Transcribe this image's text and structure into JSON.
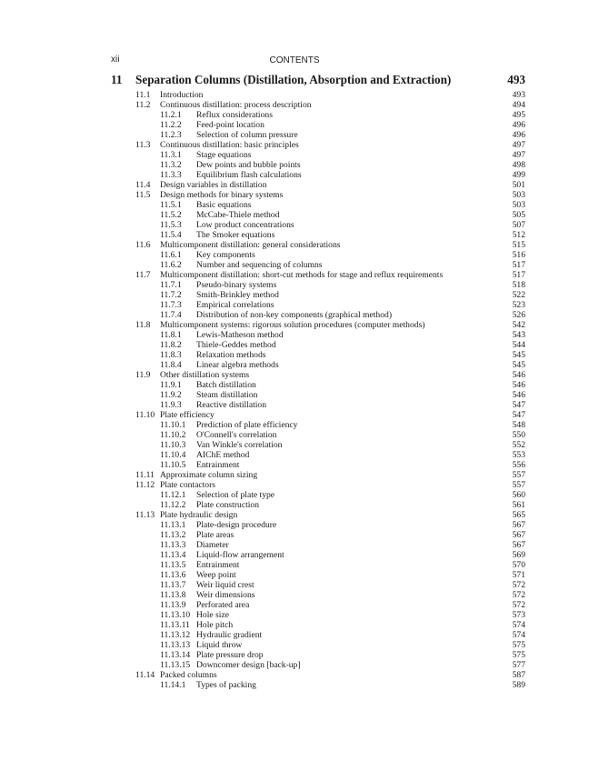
{
  "header": {
    "folio": "xii",
    "running_head": "CONTENTS"
  },
  "chapter": {
    "number": "11",
    "title": "Separation Columns (Distillation, Absorption and Extraction)",
    "page": "493"
  },
  "entries": [
    {
      "level": 1,
      "number": "11.1",
      "title": "Introduction",
      "page": "493"
    },
    {
      "level": 1,
      "number": "11.2",
      "title": "Continuous distillation: process description",
      "page": "494"
    },
    {
      "level": 2,
      "number": "11.2.1",
      "title": "Reflux considerations",
      "page": "495"
    },
    {
      "level": 2,
      "number": "11.2.2",
      "title": "Feed-point location",
      "page": "496"
    },
    {
      "level": 2,
      "number": "11.2.3",
      "title": "Selection of column pressure",
      "page": "496"
    },
    {
      "level": 1,
      "number": "11.3",
      "title": "Continuous distillation: basic principles",
      "page": "497"
    },
    {
      "level": 2,
      "number": "11.3.1",
      "title": "Stage equations",
      "page": "497"
    },
    {
      "level": 2,
      "number": "11.3.2",
      "title": "Dew points and bubble points",
      "page": "498"
    },
    {
      "level": 2,
      "number": "11.3.3",
      "title": "Equilibrium flash calculations",
      "page": "499"
    },
    {
      "level": 1,
      "number": "11.4",
      "title": "Design variables in distillation",
      "page": "501"
    },
    {
      "level": 1,
      "number": "11.5",
      "title": "Design methods for binary systems",
      "page": "503"
    },
    {
      "level": 2,
      "number": "11.5.1",
      "title": "Basic equations",
      "page": "503"
    },
    {
      "level": 2,
      "number": "11.5.2",
      "title": "McCabe-Thiele method",
      "page": "505"
    },
    {
      "level": 2,
      "number": "11.5.3",
      "title": "Low product concentrations",
      "page": "507"
    },
    {
      "level": 2,
      "number": "11.5.4",
      "title": "The Smoker equations",
      "page": "512"
    },
    {
      "level": 1,
      "number": "11.6",
      "title": "Multicomponent distillation: general considerations",
      "page": "515"
    },
    {
      "level": 2,
      "number": "11.6.1",
      "title": "Key components",
      "page": "516"
    },
    {
      "level": 2,
      "number": "11.6.2",
      "title": "Number and sequencing of columns",
      "page": "517"
    },
    {
      "level": 1,
      "number": "11.7",
      "title": "Multicomponent distillation: short-cut methods for stage and reflux requirements",
      "page": "517"
    },
    {
      "level": 2,
      "number": "11.7.1",
      "title": "Pseudo-binary systems",
      "page": "518"
    },
    {
      "level": 2,
      "number": "11.7.2",
      "title": "Smith-Brinkley method",
      "page": "522"
    },
    {
      "level": 2,
      "number": "11.7.3",
      "title": "Empirical correlations",
      "page": "523"
    },
    {
      "level": 2,
      "number": "11.7.4",
      "title": "Distribution of non-key components (graphical method)",
      "page": "526"
    },
    {
      "level": 1,
      "number": "11.8",
      "title": "Multicomponent systems: rigorous solution procedures (computer methods)",
      "page": "542"
    },
    {
      "level": 2,
      "number": "11.8.1",
      "title": "Lewis-Matheson method",
      "page": "543"
    },
    {
      "level": 2,
      "number": "11.8.2",
      "title": "Thiele-Geddes method",
      "page": "544"
    },
    {
      "level": 2,
      "number": "11.8.3",
      "title": "Relaxation methods",
      "page": "545"
    },
    {
      "level": 2,
      "number": "11.8.4",
      "title": "Linear algebra methods",
      "page": "545"
    },
    {
      "level": 1,
      "number": "11.9",
      "title": "Other distillation systems",
      "page": "546"
    },
    {
      "level": 2,
      "number": "11.9.1",
      "title": "Batch distillation",
      "page": "546"
    },
    {
      "level": 2,
      "number": "11.9.2",
      "title": "Steam distillation",
      "page": "546"
    },
    {
      "level": 2,
      "number": "11.9.3",
      "title": "Reactive distillation",
      "page": "547"
    },
    {
      "level": 1,
      "number": "11.10",
      "title": "Plate efficiency",
      "page": "547"
    },
    {
      "level": 2,
      "number": "11.10.1",
      "title": "Prediction of plate efficiency",
      "page": "548"
    },
    {
      "level": 2,
      "number": "11.10.2",
      "title": "O'Connell's correlation",
      "page": "550"
    },
    {
      "level": 2,
      "number": "11.10.3",
      "title": "Van Winkle's correlation",
      "page": "552"
    },
    {
      "level": 2,
      "number": "11.10.4",
      "title": "AIChE method",
      "page": "553"
    },
    {
      "level": 2,
      "number": "11.10.5",
      "title": "Entrainment",
      "page": "556"
    },
    {
      "level": 1,
      "number": "11.11",
      "title": "Approximate column sizing",
      "page": "557"
    },
    {
      "level": 1,
      "number": "11.12",
      "title": "Plate contactors",
      "page": "557"
    },
    {
      "level": 2,
      "number": "11.12.1",
      "title": "Selection of plate type",
      "page": "560"
    },
    {
      "level": 2,
      "number": "11.12.2",
      "title": "Plate construction",
      "page": "561"
    },
    {
      "level": 1,
      "number": "11.13",
      "title": "Plate hydraulic design",
      "page": "565"
    },
    {
      "level": 2,
      "number": "11.13.1",
      "title": "Plate-design procedure",
      "page": "567"
    },
    {
      "level": 2,
      "number": "11.13.2",
      "title": "Plate areas",
      "page": "567"
    },
    {
      "level": 2,
      "number": "11.13.3",
      "title": "Diameter",
      "page": "567"
    },
    {
      "level": 2,
      "number": "11.13.4",
      "title": "Liquid-flow arrangement",
      "page": "569"
    },
    {
      "level": 2,
      "number": "11.13.5",
      "title": "Entrainment",
      "page": "570"
    },
    {
      "level": 2,
      "number": "11.13.6",
      "title": "Weep point",
      "page": "571"
    },
    {
      "level": 2,
      "number": "11.13.7",
      "title": "Weir liquid crest",
      "page": "572"
    },
    {
      "level": 2,
      "number": "11.13.8",
      "title": "Weir dimensions",
      "page": "572"
    },
    {
      "level": 2,
      "number": "11.13.9",
      "title": "Perforated area",
      "page": "572"
    },
    {
      "level": 2,
      "number": "11.13.10",
      "title": "Hole size",
      "page": "573"
    },
    {
      "level": 2,
      "number": "11.13.11",
      "title": "Hole pitch",
      "page": "574"
    },
    {
      "level": 2,
      "number": "11.13.12",
      "title": "Hydraulic gradient",
      "page": "574"
    },
    {
      "level": 2,
      "number": "11.13.13",
      "title": "Liquid throw",
      "page": "575"
    },
    {
      "level": 2,
      "number": "11.13.14",
      "title": "Plate pressure drop",
      "page": "575"
    },
    {
      "level": 2,
      "number": "11.13.15",
      "title": "Downcomer design [back-up]",
      "page": "577"
    },
    {
      "level": 1,
      "number": "11.14",
      "title": "Packed columns",
      "page": "587"
    },
    {
      "level": 2,
      "number": "11.14.1",
      "title": "Types of packing",
      "page": "589"
    }
  ]
}
